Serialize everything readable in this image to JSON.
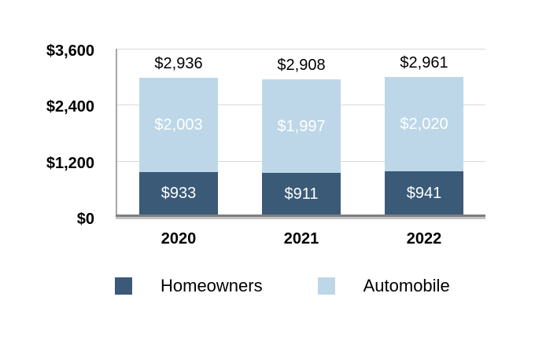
{
  "chart_data": {
    "type": "bar",
    "stacked": true,
    "categories": [
      "2020",
      "2021",
      "2022"
    ],
    "series": [
      {
        "name": "Homeowners",
        "color": "#3a5a78",
        "values": [
          933,
          911,
          941
        ],
        "labels": [
          "$933",
          "$911",
          "$941"
        ]
      },
      {
        "name": "Automobile",
        "color": "#bdd7e9",
        "values": [
          2003,
          1997,
          2020
        ],
        "labels": [
          "$2,003",
          "$1,997",
          "$2,020"
        ]
      }
    ],
    "totals": [
      2936,
      2908,
      2961
    ],
    "total_labels": [
      "$2,936",
      "$2,908",
      "$2,961"
    ],
    "y_axis": {
      "min": 0,
      "max": 3600,
      "ticks": [
        {
          "value": 3600,
          "label": "$3,600"
        },
        {
          "value": 2400,
          "label": "$2,400"
        },
        {
          "value": 1200,
          "label": "$1,200"
        },
        {
          "value": 0,
          "label": "$0"
        }
      ]
    },
    "grid": true,
    "legend_position": "bottom",
    "legend": [
      {
        "label": "Homeowners",
        "color": "#3a5a78"
      },
      {
        "label": "Automobile",
        "color": "#bdd7e9"
      }
    ],
    "colors": {
      "gridline": "#d9d9d9",
      "y_axis_line": "#a6a6a6",
      "x_axis_line": "#7f7f7f",
      "segment_label_text": "#ffffff",
      "axis_label_text": "#000000"
    }
  }
}
